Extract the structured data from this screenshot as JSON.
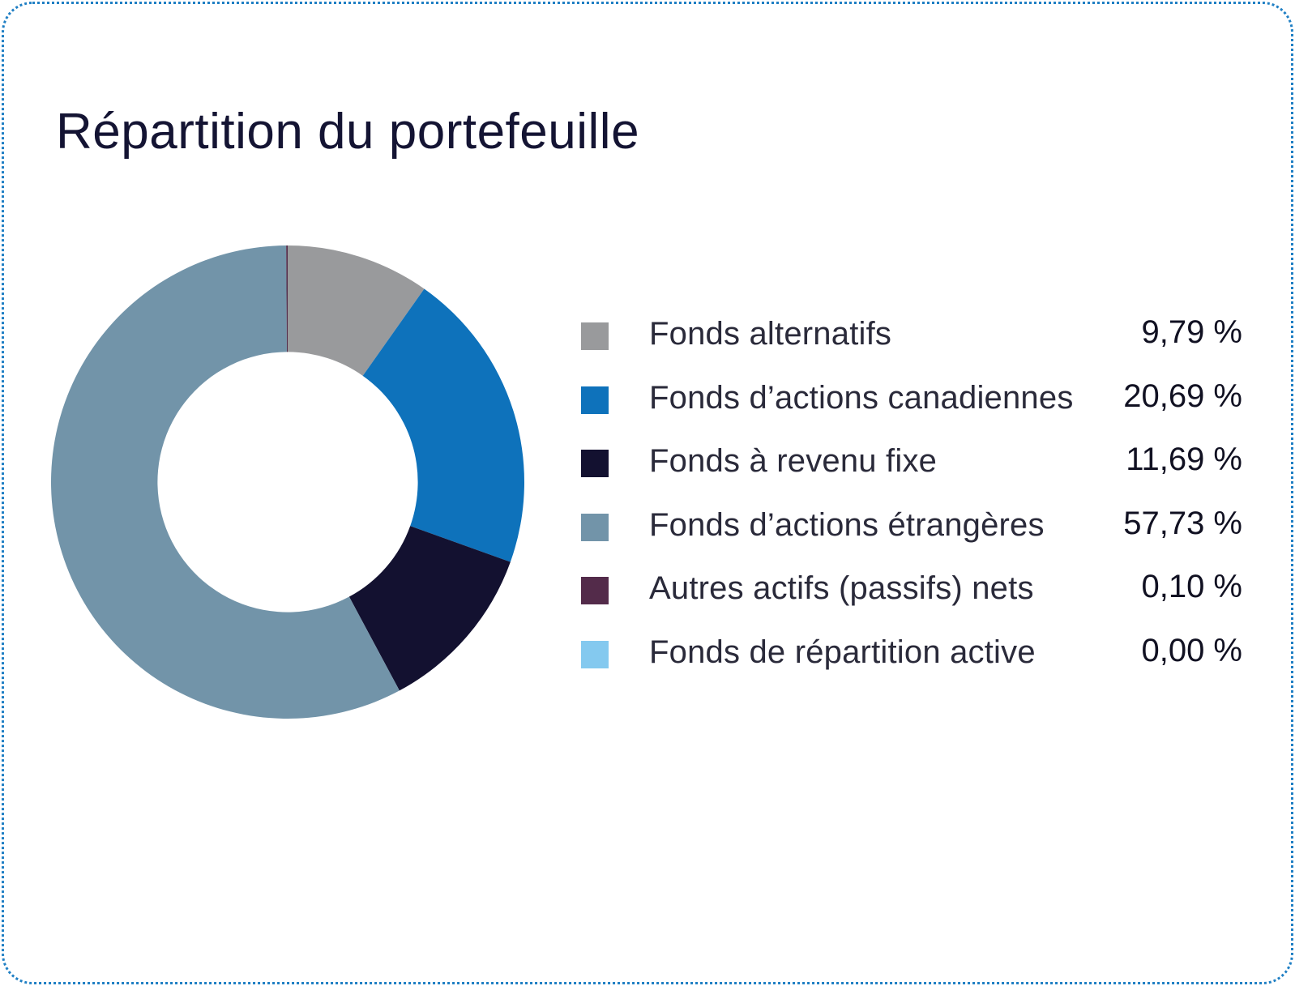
{
  "chart_data": {
    "type": "pie",
    "title": "Répartition du portefeuille",
    "inner_radius_ratio": 0.55,
    "start_angle_deg": 0,
    "direction": "clockwise",
    "categories": [
      "Fonds alternatifs",
      "Fonds d’actions canadiennes",
      "Fonds à revenu fixe",
      "Fonds d’actions étrangères",
      "Autres actifs (passifs) nets",
      "Fonds de répartition active"
    ],
    "values": [
      9.79,
      20.69,
      11.69,
      57.73,
      0.1,
      0.0
    ],
    "value_labels": [
      "9,79 %",
      "20,69 %",
      "11,69 %",
      "57,73 %",
      "0,10 %",
      "0,00 %"
    ],
    "colors": [
      "#999a9c",
      "#0e72bb",
      "#131130",
      "#7294a9",
      "#532b4a",
      "#84c9ef"
    ],
    "legend_position": "right"
  }
}
